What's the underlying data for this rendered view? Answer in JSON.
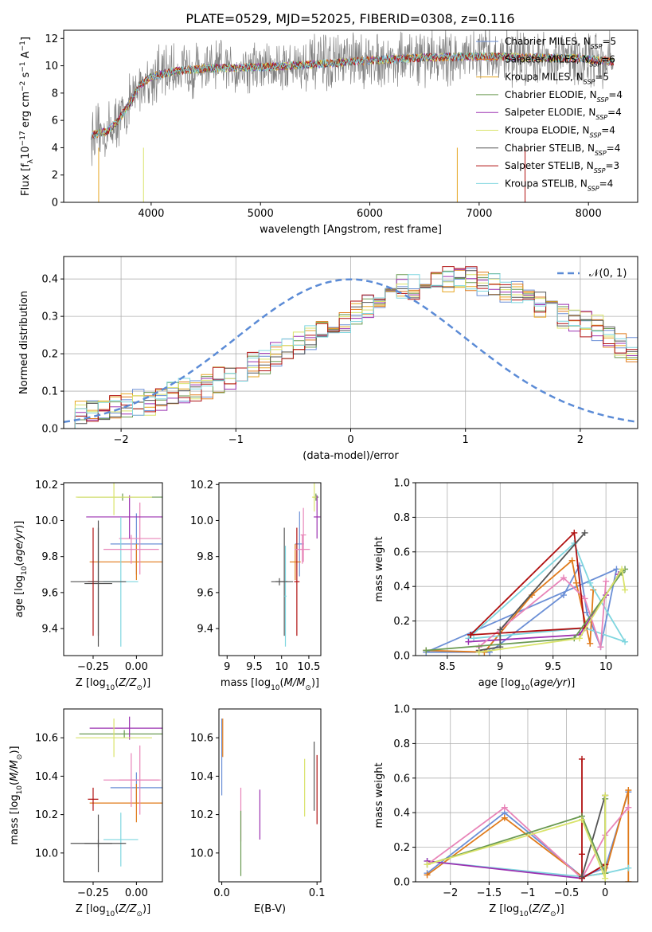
{
  "figure": {
    "title": "PLATE=0529, MJD=52025, FIBERID=0308, z=0.116"
  },
  "colors": {
    "series": [
      "#6b8fd6",
      "#e07a1a",
      "#e6a520",
      "#6a9a52",
      "#9b30b0",
      "#d9e36a",
      "#555555",
      "#b01010",
      "#7fd6df"
    ],
    "observed": "#808080",
    "normal_curve": "#5b8bd6",
    "weights_series": [
      "#6b8fd6",
      "#e07a1a",
      "#7fd6df",
      "#9b30b0",
      "#e884b8",
      "#b01010",
      "#555555",
      "#6a9a52",
      "#d9e36a"
    ]
  },
  "chart_data": [
    {
      "id": "spectrum",
      "type": "line",
      "title": "PLATE=0529, MJD=52025, FIBERID=0308, z=0.116",
      "xlabel": "wavelength [Angstrom, rest frame]",
      "ylabel": "Flux [f_λ10^-17 erg cm^-2 s^-1 A^-1]",
      "xlim": [
        3200,
        8450
      ],
      "ylim": [
        0,
        12.6
      ],
      "xticks": [
        4000,
        5000,
        6000,
        7000,
        8000
      ],
      "yticks": [
        0,
        2,
        4,
        6,
        8,
        10,
        12
      ],
      "legend_position": "right",
      "legend": [
        {
          "main": "Chabrier MILES, N",
          "sub": "SSP",
          "tail": "=5"
        },
        {
          "main": "Salpeter MILES, N",
          "sub": "SSP",
          "tail": "=6"
        },
        {
          "main": "Kroupa MILES, N",
          "sub": "SSP",
          "tail": "=5"
        },
        {
          "main": "Chabrier ELODIE, N",
          "sub": "SSP",
          "tail": "=4"
        },
        {
          "main": "Salpeter ELODIE, N",
          "sub": "SSP",
          "tail": "=4"
        },
        {
          "main": "Kroupa ELODIE, N",
          "sub": "SSP",
          "tail": "=4"
        },
        {
          "main": "Chabrier STELIB, N",
          "sub": "SSP",
          "tail": "=4"
        },
        {
          "main": "Salpeter STELIB, N",
          "sub": "SSP",
          "tail": "=3"
        },
        {
          "main": "Kroupa STELIB, N",
          "sub": "SSP",
          "tail": "=4"
        }
      ],
      "continuum_points": [
        [
          3450,
          4.9
        ],
        [
          3600,
          5.2
        ],
        [
          3700,
          6.0
        ],
        [
          3800,
          7.2
        ],
        [
          3900,
          8.6
        ],
        [
          4000,
          9.2
        ],
        [
          4200,
          9.6
        ],
        [
          4500,
          9.8
        ],
        [
          5000,
          9.9
        ],
        [
          5500,
          10.1
        ],
        [
          6000,
          10.4
        ],
        [
          6500,
          10.6
        ],
        [
          7000,
          10.7
        ],
        [
          7500,
          10.6
        ],
        [
          8000,
          10.5
        ],
        [
          8230,
          10.3
        ]
      ]
    },
    {
      "id": "residuals",
      "type": "histogram",
      "xlabel": "(data-model)/error",
      "ylabel": "Normed distribution",
      "xlim": [
        -2.5,
        2.5
      ],
      "ylim": [
        0,
        0.46
      ],
      "xticks": [
        -2,
        -1,
        0,
        1,
        2
      ],
      "yticks": [
        0.0,
        0.1,
        0.2,
        0.3,
        0.4
      ],
      "grid": true,
      "legend_position": "top-right",
      "legend_label": "𝒩(0, 1)",
      "bin_width": 0.1,
      "bin_start": -2.5,
      "reference_heights": [
        0.03,
        0.04,
        0.05,
        0.05,
        0.06,
        0.06,
        0.07,
        0.07,
        0.08,
        0.09,
        0.1,
        0.1,
        0.11,
        0.13,
        0.14,
        0.15,
        0.17,
        0.18,
        0.2,
        0.22,
        0.23,
        0.24,
        0.26,
        0.27,
        0.29,
        0.31,
        0.33,
        0.34,
        0.36,
        0.38,
        0.38,
        0.39,
        0.4,
        0.4,
        0.41,
        0.4,
        0.39,
        0.39,
        0.37,
        0.36,
        0.35,
        0.33,
        0.31,
        0.3,
        0.29,
        0.28,
        0.27,
        0.24,
        0.22,
        0.21
      ]
    },
    {
      "id": "age-vs-Z",
      "type": "errorbar",
      "xlabel": "Z [log10(Z/Z⊙)]",
      "ylabel": "age [log10(age/yr)]",
      "xlim": [
        -0.42,
        0.15
      ],
      "ylim": [
        9.25,
        10.21
      ],
      "xticks": [
        -0.25,
        0.0
      ],
      "xticklabels": [
        "−0.25",
        "0.00"
      ],
      "yticks": [
        9.4,
        9.6,
        9.8,
        10.0,
        10.2
      ],
      "points": [
        {
          "x": 0.0,
          "xerr": 0.15,
          "y": 9.87,
          "yerr": 0.17
        },
        {
          "x": 0.0,
          "xerr": 0.27,
          "y": 9.77,
          "yerr": 0.1
        },
        {
          "x": 0.02,
          "xerr": 0.12,
          "y": 9.9,
          "yerr": 0.2
        },
        {
          "x": -0.08,
          "xerr": 0.26,
          "y": 10.13,
          "yerr": 0.02
        },
        {
          "x": -0.04,
          "xerr": 0.25,
          "y": 10.02,
          "yerr": 0.12
        },
        {
          "x": -0.13,
          "xerr": 0.22,
          "y": 10.13,
          "yerr": 0.1
        },
        {
          "x": -0.22,
          "xerr": 0.08,
          "y": 9.65,
          "yerr": 0.35
        },
        {
          "x": -0.25,
          "xerr": 0.03,
          "y": 9.66,
          "yerr": 0.3
        },
        {
          "x": -0.09,
          "xerr": 0.1,
          "y": 9.66,
          "yerr": 0.36
        },
        {
          "x": -0.03,
          "xerr": 0.16,
          "y": 9.84,
          "yerr": 0.08
        },
        {
          "x": -0.22,
          "xerr": 0.16,
          "y": 9.66,
          "yerr": 0.3
        }
      ]
    },
    {
      "id": "age-vs-mass",
      "type": "errorbar",
      "xlabel": "mass [log10(M/M⊙)]",
      "ylabel": "",
      "xlim": [
        8.85,
        10.72
      ],
      "ylim": [
        9.25,
        10.21
      ],
      "xticks": [
        9.0,
        9.5,
        10.0,
        10.5
      ],
      "yticks": [
        9.4,
        9.6,
        9.8,
        10.0,
        10.2
      ],
      "points": [
        {
          "x": 10.33,
          "xerr": 0.08,
          "y": 9.87,
          "yerr": 0.18
        },
        {
          "x": 10.25,
          "xerr": 0.1,
          "y": 9.77,
          "yerr": 0.1
        },
        {
          "x": 10.4,
          "xerr": 0.05,
          "y": 9.92,
          "yerr": 0.15
        },
        {
          "x": 10.63,
          "xerr": 0.05,
          "y": 10.13,
          "yerr": 0.02
        },
        {
          "x": 10.65,
          "xerr": 0.06,
          "y": 10.02,
          "yerr": 0.12
        },
        {
          "x": 10.6,
          "xerr": 0.04,
          "y": 10.13,
          "yerr": 0.08
        },
        {
          "x": 10.05,
          "xerr": 0.16,
          "y": 9.66,
          "yerr": 0.3
        },
        {
          "x": 10.28,
          "xerr": 0.05,
          "y": 9.66,
          "yerr": 0.3
        },
        {
          "x": 10.07,
          "xerr": 0.02,
          "y": 9.58,
          "yerr": 0.28
        },
        {
          "x": 10.38,
          "xerr": 0.14,
          "y": 9.84,
          "yerr": 0.08
        },
        {
          "x": 9.96,
          "xerr": 0.15,
          "y": 9.66,
          "yerr": 0.02
        }
      ]
    },
    {
      "id": "weights-vs-age",
      "type": "line",
      "xlabel": "age [log10(age/yr)]",
      "ylabel": "mass weight",
      "xlim": [
        8.2,
        10.3
      ],
      "ylim": [
        0,
        1.0
      ],
      "xticks": [
        8.5,
        9.0,
        9.5,
        10.0
      ],
      "yticks": [
        0.0,
        0.2,
        0.4,
        0.6,
        0.8,
        1.0
      ],
      "grid": true,
      "series": [
        {
          "x": [
            8.3,
            8.9,
            9.6,
            9.75,
            9.82,
            9.95,
            10.1,
            8.3
          ],
          "y": [
            0.02,
            0.02,
            0.35,
            0.52,
            0.25,
            0.05,
            0.5,
            0.02
          ]
        },
        {
          "x": [
            8.3,
            8.85,
            9.3,
            9.68,
            9.72,
            9.85,
            9.88
          ],
          "y": [
            0.03,
            0.02,
            0.35,
            0.55,
            0.42,
            0.07,
            0.38
          ]
        },
        {
          "x": [
            8.7,
            9.7,
            9.85,
            10.18,
            9.8,
            8.75
          ],
          "y": [
            0.1,
            0.65,
            0.42,
            0.08,
            0.16,
            0.1
          ]
        },
        {
          "x": [
            8.7,
            9.75,
            10.0,
            10.12
          ],
          "y": [
            0.08,
            0.12,
            0.35,
            0.47
          ]
        },
        {
          "x": [
            8.8,
            9.6,
            9.8,
            9.95,
            10.0
          ],
          "y": [
            0.05,
            0.45,
            0.33,
            0.05,
            0.43
          ]
        },
        {
          "x": [
            8.72,
            9.7,
            9.8,
            8.72
          ],
          "y": [
            0.12,
            0.71,
            0.16,
            0.12
          ]
        },
        {
          "x": [
            8.8,
            9.0,
            9.0,
            9.8
          ],
          "y": [
            0.03,
            0.05,
            0.15,
            0.71
          ]
        },
        {
          "x": [
            8.3,
            9.7,
            10.15,
            10.18
          ],
          "y": [
            0.03,
            0.1,
            0.48,
            0.5
          ]
        },
        {
          "x": [
            8.8,
            9.75,
            10.15,
            10.18
          ],
          "y": [
            0.02,
            0.1,
            0.5,
            0.38
          ]
        }
      ]
    },
    {
      "id": "mass-vs-Z",
      "type": "errorbar",
      "xlabel": "Z [log10(Z/Z⊙)]",
      "ylabel": "mass [log10(M/M⊙)]",
      "xlim": [
        -0.42,
        0.15
      ],
      "ylim": [
        9.85,
        10.75
      ],
      "xticks": [
        -0.25,
        0.0
      ],
      "xticklabels": [
        "−0.25",
        "0.00"
      ],
      "yticks": [
        10.0,
        10.2,
        10.4,
        10.6
      ],
      "points": [
        {
          "x": 0.0,
          "xerr": 0.15,
          "y": 10.34,
          "yerr": 0.08
        },
        {
          "x": 0.0,
          "xerr": 0.27,
          "y": 10.26,
          "yerr": 0.1
        },
        {
          "x": 0.02,
          "xerr": 0.12,
          "y": 10.38,
          "yerr": 0.18
        },
        {
          "x": -0.07,
          "xerr": 0.26,
          "y": 10.62,
          "yerr": 0.02
        },
        {
          "x": -0.04,
          "xerr": 0.23,
          "y": 10.65,
          "yerr": 0.06
        },
        {
          "x": -0.13,
          "xerr": 0.22,
          "y": 10.6,
          "yerr": 0.1
        },
        {
          "x": -0.22,
          "xerr": 0.08,
          "y": 10.05,
          "yerr": 0.15
        },
        {
          "x": -0.25,
          "xerr": 0.03,
          "y": 10.28,
          "yerr": 0.06
        },
        {
          "x": -0.09,
          "xerr": 0.1,
          "y": 10.07,
          "yerr": 0.14
        },
        {
          "x": -0.03,
          "xerr": 0.16,
          "y": 10.38,
          "yerr": 0.14
        },
        {
          "x": -0.22,
          "xerr": 0.16,
          "y": 10.05,
          "yerr": 0.02
        }
      ]
    },
    {
      "id": "mass-vs-ebv",
      "type": "errorbar",
      "xlabel": "E(B-V)",
      "ylabel": "",
      "xlim": [
        -0.003,
        0.104
      ],
      "ylim": [
        9.85,
        10.75
      ],
      "xticks": [
        0.0,
        0.1
      ],
      "xticklabels": [
        "0.0",
        "0.1"
      ],
      "yticks": [
        10.0,
        10.2,
        10.4,
        10.6
      ],
      "points": [
        {
          "x": 0.0,
          "y": 10.5,
          "yerr": 0.2
        },
        {
          "x": 0.001,
          "y": 10.6,
          "yerr": 0.1
        },
        {
          "x": 0.02,
          "y": 10.2,
          "yerr": 0.14
        },
        {
          "x": 0.02,
          "y": 10.05,
          "yerr": 0.17
        },
        {
          "x": 0.04,
          "y": 10.2,
          "yerr": 0.13
        },
        {
          "x": 0.087,
          "y": 10.34,
          "yerr": 0.15
        },
        {
          "x": 0.097,
          "y": 10.4,
          "yerr": 0.18
        },
        {
          "x": 0.1,
          "y": 10.33,
          "yerr": 0.18
        }
      ]
    },
    {
      "id": "weights-vs-Z",
      "type": "line",
      "xlabel": "Z [log10(Z/Z⊙)]",
      "ylabel": "mass weight",
      "xlim": [
        -2.45,
        0.42
      ],
      "ylim": [
        0,
        1.0
      ],
      "xticks": [
        -2.0,
        -1.5,
        -1.0,
        -0.5,
        0.0
      ],
      "yticks": [
        0.0,
        0.2,
        0.4,
        0.6,
        0.8,
        1.0
      ],
      "grid": true,
      "series": [
        {
          "x": [
            -2.3,
            -1.3,
            -0.3,
            0.0,
            0.3
          ],
          "y": [
            0.05,
            0.4,
            0.03,
            0.08,
            0.52
          ]
        },
        {
          "x": [
            -2.3,
            -1.3,
            -0.3,
            0.0,
            0.3,
            0.3
          ],
          "y": [
            0.04,
            0.37,
            0.03,
            0.05,
            0.53,
            0.0
          ]
        },
        {
          "x": [
            -2.3,
            -0.3,
            0.0,
            0.3
          ],
          "y": [
            0.12,
            0.03,
            0.05,
            0.08
          ]
        },
        {
          "x": [
            -2.3,
            -0.3,
            0.0
          ],
          "y": [
            0.12,
            0.02,
            0.1
          ]
        },
        {
          "x": [
            -2.3,
            -1.3,
            -0.3,
            0.0,
            0.3
          ],
          "y": [
            0.1,
            0.43,
            0.02,
            0.27,
            0.43
          ]
        },
        {
          "x": [
            -0.3,
            -0.3,
            -0.3,
            0.0,
            0.0
          ],
          "y": [
            0.71,
            0.16,
            0.02,
            0.1,
            0.1
          ]
        },
        {
          "x": [
            -0.3,
            0.0,
            0.0
          ],
          "y": [
            0.03,
            0.5,
            0.05
          ]
        },
        {
          "x": [
            -2.3,
            -0.3,
            0.0,
            0.0
          ],
          "y": [
            0.1,
            0.38,
            0.05,
            0.48
          ]
        },
        {
          "x": [
            -2.3,
            -0.3,
            0.0,
            0.0
          ],
          "y": [
            0.1,
            0.36,
            0.02,
            0.5
          ]
        }
      ]
    }
  ]
}
